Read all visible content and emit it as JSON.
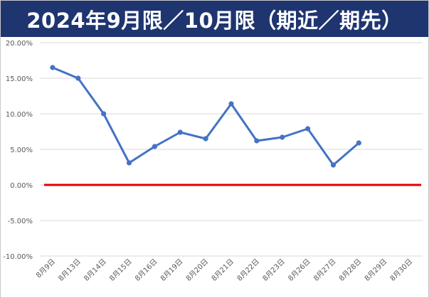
{
  "chart_data": {
    "type": "line",
    "title": "2024年9月限／10月限（期近／期先）",
    "xlabel": "",
    "ylabel": "",
    "categories": [
      "8月9日",
      "8月13日",
      "8月14日",
      "8月15日",
      "8月16日",
      "8月19日",
      "8月20日",
      "8月21日",
      "8月22日",
      "8月23日",
      "8月26日",
      "8月27日",
      "8月28日",
      "8月29日",
      "8月30日"
    ],
    "series": [
      {
        "values": [
          16.5,
          15.0,
          10.0,
          3.1,
          5.4,
          7.4,
          6.5,
          11.4,
          6.2,
          6.7,
          7.9,
          2.8,
          5.9,
          null,
          null
        ]
      }
    ],
    "reference_line": {
      "y": 0.0
    },
    "ylim": [
      -10,
      20
    ],
    "yticks": [
      20,
      15,
      10,
      5,
      0,
      -5,
      -10
    ],
    "ytick_labels": [
      "20.00%",
      "15.00%",
      "10.00%",
      "5.00%",
      "0.00%",
      "-5.00%",
      "-10.00%"
    ],
    "grid": true,
    "colors": {
      "line": "#4472c4",
      "reference": "#e00000",
      "title_bg": "#1f3570",
      "grid": "#d9d9d9"
    }
  }
}
